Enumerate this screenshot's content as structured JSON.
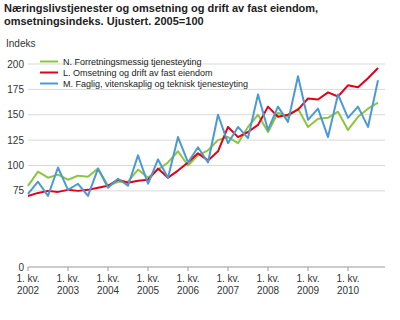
{
  "chart_data": {
    "type": "line",
    "title": "Næringslivstjenester og omsetning og drift av fast eiendom,\nomsetningsindeks. Ujustert. 2005=100",
    "y_label": "Indeks",
    "categories": [
      "1. kv.\n2002",
      null,
      null,
      null,
      "1. kv.\n2003",
      null,
      null,
      null,
      "1. kv.\n2004",
      null,
      null,
      null,
      "1. kv.\n2005",
      null,
      null,
      null,
      "1. kv.\n2006",
      null,
      null,
      null,
      "1. kv.\n2007",
      null,
      null,
      null,
      "1. kv.\n2008",
      null,
      null,
      null,
      "1. kv.\n2009",
      null,
      null,
      null,
      "1. kv.\n2010",
      null,
      null,
      null
    ],
    "series": [
      {
        "name": "N. Forretningsmessig tjenesteyting",
        "color": "#8cc63f",
        "values": [
          80,
          94,
          88,
          91,
          86,
          90,
          89,
          97,
          80,
          84,
          84,
          96,
          88,
          96,
          103,
          114,
          100,
          110,
          115,
          125,
          128,
          122,
          138,
          150,
          133,
          152,
          148,
          156,
          138,
          146,
          147,
          153,
          135,
          148,
          156,
          162
        ]
      },
      {
        "name": "L. Omsetning og drift av fast eiendom",
        "color": "#e2001a",
        "values": [
          70,
          73,
          75,
          74,
          76,
          75,
          76,
          78,
          80,
          86,
          83,
          85,
          86,
          97,
          88,
          95,
          103,
          112,
          105,
          114,
          138,
          128,
          133,
          140,
          158,
          148,
          150,
          155,
          166,
          165,
          172,
          168,
          179,
          177,
          186,
          196
        ]
      },
      {
        "name": "M. Faglig, vitenskaplig og teknisk tjenesteyting",
        "color": "#4c9ad3",
        "values": [
          72,
          84,
          70,
          98,
          76,
          82,
          70,
          97,
          78,
          87,
          80,
          110,
          82,
          106,
          88,
          128,
          103,
          118,
          103,
          150,
          122,
          138,
          127,
          170,
          135,
          158,
          143,
          188,
          145,
          156,
          128,
          170,
          147,
          158,
          138,
          184
        ]
      }
    ],
    "ylim": [
      0,
      200
    ],
    "yticks": [
      0,
      75,
      100,
      125,
      150,
      175,
      200
    ],
    "grid": true,
    "legend": "top-left"
  }
}
